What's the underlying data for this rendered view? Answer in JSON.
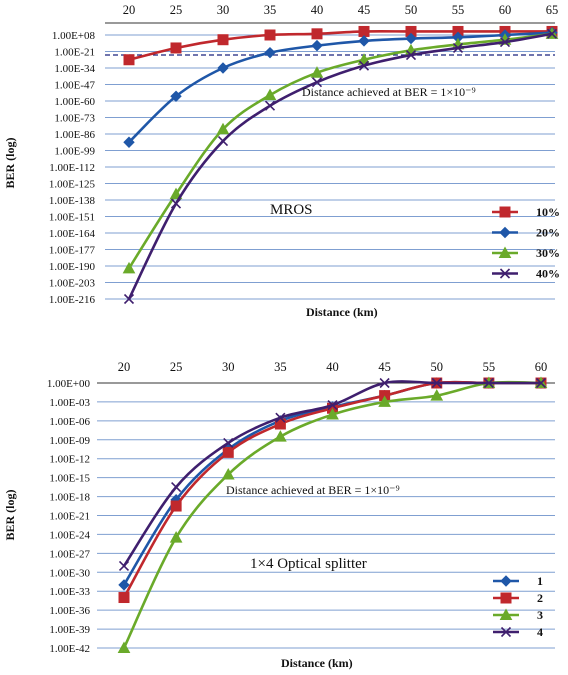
{
  "chart_data": [
    {
      "type": "line",
      "xlabel": "Distance (km)",
      "ylabel": "BER (log)",
      "x_ticks": [
        "20",
        "25",
        "30",
        "35",
        "40",
        "45",
        "50",
        "55",
        "60",
        "65"
      ],
      "xlim": [
        20,
        65
      ],
      "y_ticks": [
        "1.00E+08",
        "1.00E-21",
        "1.00E-34",
        "1.00E-47",
        "1.00E-60",
        "1.00E-73",
        "1.00E-86",
        "1.00E-99",
        "1.00E-112",
        "1.00E-125",
        "1.00E-138",
        "1.00E-151",
        "1.00E-164",
        "1.00E-177",
        "1.00E-190",
        "1.00E-203",
        "1.00E-216"
      ],
      "ylim": [
        -216,
        8
      ],
      "y_scale": "log",
      "grid": true,
      "x_axis_position": "top",
      "legend_position": "right",
      "annotations": [
        "Distance achieved at BER = 1×10⁻⁹",
        "MROS"
      ],
      "threshold": -9,
      "series": [
        {
          "name": "10%",
          "color": "#c0282d",
          "marker": "square",
          "x": [
            20,
            25,
            30,
            35,
            40,
            45,
            50,
            55,
            60,
            65
          ],
          "y": [
            -13,
            -3,
            4,
            8,
            9,
            11,
            11,
            11,
            11,
            11
          ]
        },
        {
          "name": "20%",
          "color": "#1f57a8",
          "marker": "diamond",
          "x": [
            20,
            25,
            30,
            35,
            40,
            45,
            50,
            55,
            60,
            65
          ],
          "y": [
            -83,
            -44,
            -20,
            -7,
            -1,
            3,
            5,
            6,
            8,
            10
          ]
        },
        {
          "name": "30%",
          "color": "#6aaa2a",
          "marker": "triangle",
          "x": [
            20,
            25,
            30,
            35,
            40,
            45,
            50,
            55,
            60,
            65
          ],
          "y": [
            -190,
            -127,
            -72,
            -43,
            -24,
            -13,
            -5,
            0,
            4,
            9
          ]
        },
        {
          "name": "40%",
          "color": "#3f1f6e",
          "marker": "x",
          "x": [
            20,
            25,
            30,
            35,
            40,
            45,
            50,
            55,
            60,
            65
          ],
          "y": [
            -216,
            -135,
            -82,
            -52,
            -32,
            -18,
            -9,
            -3,
            2,
            9
          ]
        }
      ]
    },
    {
      "type": "line",
      "xlabel": "Distance (km)",
      "ylabel": "BER (log)",
      "x_ticks": [
        "20",
        "25",
        "30",
        "35",
        "40",
        "45",
        "50",
        "55",
        "60"
      ],
      "xlim": [
        20,
        60
      ],
      "y_ticks": [
        "1.00E+00",
        "1.00E-03",
        "1.00E-06",
        "1.00E-09",
        "1.00E-12",
        "1.00E-15",
        "1.00E-18",
        "1.00E-21",
        "1.00E-24",
        "1.00E-27",
        "1.00E-30",
        "1.00E-33",
        "1.00E-36",
        "1.00E-39",
        "1.00E-42"
      ],
      "ylim": [
        -42,
        0
      ],
      "y_scale": "log",
      "grid": true,
      "x_axis_position": "top",
      "legend_position": "right",
      "annotations": [
        "Distance achieved at BER = 1×10⁻⁹",
        "1×4 Optical splitter"
      ],
      "series": [
        {
          "name": "1",
          "color": "#1f57a8",
          "marker": "diamond",
          "x": [
            20,
            25,
            30,
            35,
            40,
            45,
            50,
            55,
            60
          ],
          "y": [
            -32,
            -18.5,
            -10.5,
            -6,
            -3.8,
            -2,
            0,
            0,
            0
          ]
        },
        {
          "name": "2",
          "color": "#c0282d",
          "marker": "square",
          "x": [
            20,
            25,
            30,
            35,
            40,
            45,
            50,
            55,
            60
          ],
          "y": [
            -34,
            -19.5,
            -11,
            -6.5,
            -4,
            -2,
            0,
            0,
            0
          ]
        },
        {
          "name": "3",
          "color": "#6aaa2a",
          "marker": "triangle",
          "x": [
            20,
            25,
            30,
            35,
            40,
            45,
            50,
            55,
            60
          ],
          "y": [
            -42,
            -24.5,
            -14.5,
            -8.5,
            -5,
            -3,
            -2,
            0,
            0
          ]
        },
        {
          "name": "4",
          "color": "#3f1f6e",
          "marker": "x",
          "x": [
            20,
            25,
            30,
            35,
            40,
            45,
            50,
            55,
            60
          ],
          "y": [
            -29,
            -16.5,
            -9.5,
            -5.5,
            -3.5,
            0,
            0,
            0,
            0
          ]
        }
      ]
    }
  ]
}
